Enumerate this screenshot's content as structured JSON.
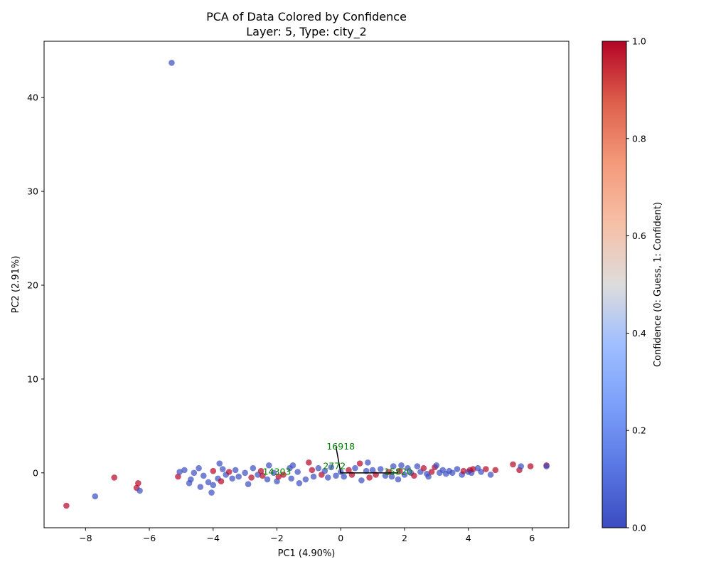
{
  "chart_data": {
    "type": "scatter",
    "title": "PCA of Data Colored by Confidence",
    "subtitle": "Layer: 5, Type: city_2",
    "xlabel": "PC1 (4.90%)",
    "ylabel": "PC2 (2.91%)",
    "xlim": [
      -9.3,
      7.15
    ],
    "ylim": [
      -5.85,
      46.0
    ],
    "xticks": [
      -8,
      -6,
      -4,
      -2,
      0,
      2,
      4,
      6
    ],
    "yticks": [
      0,
      10,
      20,
      30,
      40
    ],
    "grid": false,
    "colorbar": {
      "label": "Confidence (0: Guess, 1: Confident)",
      "range": [
        0.0,
        1.0
      ],
      "ticks": [
        0.0,
        0.2,
        0.4,
        0.6,
        0.8,
        1.0
      ],
      "colormap": "coolwarm",
      "low_color": "#3b4cc0",
      "high_color": "#b40426"
    },
    "points": [
      {
        "x": -5.3,
        "y": 43.7,
        "c": 0
      },
      {
        "x": -8.6,
        "y": -3.5,
        "c": 1
      },
      {
        "x": -7.7,
        "y": -2.5,
        "c": 0
      },
      {
        "x": -7.1,
        "y": -0.5,
        "c": 1
      },
      {
        "x": -6.4,
        "y": -1.6,
        "c": 1
      },
      {
        "x": -6.35,
        "y": -1.1,
        "c": 1
      },
      {
        "x": -6.3,
        "y": -1.9,
        "c": 0
      },
      {
        "x": -5.1,
        "y": -0.4,
        "c": 1
      },
      {
        "x": -5.05,
        "y": 0.1,
        "c": 0
      },
      {
        "x": -4.9,
        "y": 0.3,
        "c": 0
      },
      {
        "x": -4.75,
        "y": -1.1,
        "c": 0
      },
      {
        "x": -4.7,
        "y": -0.7,
        "c": 0
      },
      {
        "x": -4.6,
        "y": 0.0,
        "c": 0
      },
      {
        "x": -4.45,
        "y": 0.5,
        "c": 0
      },
      {
        "x": -4.4,
        "y": -1.5,
        "c": 0
      },
      {
        "x": -4.3,
        "y": -0.3,
        "c": 0
      },
      {
        "x": -4.15,
        "y": -1.0,
        "c": 0
      },
      {
        "x": -4.05,
        "y": -2.1,
        "c": 0
      },
      {
        "x": -4.0,
        "y": -1.3,
        "c": 0
      },
      {
        "x": -4.0,
        "y": 0.2,
        "c": 1
      },
      {
        "x": -3.85,
        "y": -0.6,
        "c": 0
      },
      {
        "x": -3.75,
        "y": -0.9,
        "c": 1
      },
      {
        "x": -3.8,
        "y": 1.0,
        "c": 0
      },
      {
        "x": -3.7,
        "y": 0.4,
        "c": 0
      },
      {
        "x": -3.6,
        "y": -0.2,
        "c": 0
      },
      {
        "x": -3.5,
        "y": 0.1,
        "c": 1
      },
      {
        "x": -3.4,
        "y": -0.6,
        "c": 0
      },
      {
        "x": -3.3,
        "y": 0.3,
        "c": 0
      },
      {
        "x": -3.2,
        "y": -0.4,
        "c": 0
      },
      {
        "x": -3.0,
        "y": 0.0,
        "c": 0
      },
      {
        "x": -2.9,
        "y": -1.2,
        "c": 0
      },
      {
        "x": -2.8,
        "y": -0.5,
        "c": 1
      },
      {
        "x": -2.75,
        "y": 0.5,
        "c": 0
      },
      {
        "x": -2.6,
        "y": -0.2,
        "c": 0
      },
      {
        "x": -2.5,
        "y": 0.2,
        "c": 1
      },
      {
        "x": -2.45,
        "y": -0.3,
        "c": 1
      },
      {
        "x": -2.3,
        "y": -0.7,
        "c": 0
      },
      {
        "x": -2.25,
        "y": 0.8,
        "c": 0
      },
      {
        "x": -2.1,
        "y": 0.0,
        "c": 0
      },
      {
        "x": -2.0,
        "y": -0.9,
        "c": 0
      },
      {
        "x": -1.95,
        "y": -0.4,
        "c": 1
      },
      {
        "x": -1.8,
        "y": -0.2,
        "c": 1
      },
      {
        "x": -1.6,
        "y": 0.5,
        "c": 0
      },
      {
        "x": -1.55,
        "y": -0.6,
        "c": 0
      },
      {
        "x": -1.5,
        "y": 0.8,
        "c": 0
      },
      {
        "x": -1.35,
        "y": 0.1,
        "c": 0
      },
      {
        "x": -1.3,
        "y": -1.1,
        "c": 0
      },
      {
        "x": -1.1,
        "y": -0.7,
        "c": 0
      },
      {
        "x": -1.0,
        "y": 1.1,
        "c": 1
      },
      {
        "x": -0.9,
        "y": 0.3,
        "c": 1
      },
      {
        "x": -0.85,
        "y": -0.4,
        "c": 0
      },
      {
        "x": -0.7,
        "y": 0.5,
        "c": 0
      },
      {
        "x": -0.6,
        "y": -0.2,
        "c": 1
      },
      {
        "x": -0.5,
        "y": 0.2,
        "c": 0
      },
      {
        "x": -0.4,
        "y": -0.5,
        "c": 0
      },
      {
        "x": -0.3,
        "y": 0.6,
        "c": 0
      },
      {
        "x": -0.15,
        "y": -0.3,
        "c": 0
      },
      {
        "x": 0.0,
        "y": 0.1,
        "c": 0
      },
      {
        "x": 0.1,
        "y": -0.4,
        "c": 0
      },
      {
        "x": 0.25,
        "y": 0.3,
        "c": 1
      },
      {
        "x": 0.35,
        "y": -0.2,
        "c": 1
      },
      {
        "x": 0.45,
        "y": 0.5,
        "c": 0
      },
      {
        "x": 0.6,
        "y": 1.0,
        "c": 1
      },
      {
        "x": 0.65,
        "y": -0.8,
        "c": 0
      },
      {
        "x": 0.8,
        "y": 0.2,
        "c": 0
      },
      {
        "x": 0.85,
        "y": 1.1,
        "c": 0
      },
      {
        "x": 0.9,
        "y": -0.5,
        "c": 1
      },
      {
        "x": 1.0,
        "y": 0.3,
        "c": 0
      },
      {
        "x": 1.1,
        "y": -0.2,
        "c": 1
      },
      {
        "x": 1.25,
        "y": 0.4,
        "c": 0
      },
      {
        "x": 1.4,
        "y": -0.3,
        "c": 0
      },
      {
        "x": 1.5,
        "y": 0.1,
        "c": 1
      },
      {
        "x": 1.6,
        "y": -0.4,
        "c": 0
      },
      {
        "x": 1.65,
        "y": 0.7,
        "c": 0
      },
      {
        "x": 1.8,
        "y": -0.7,
        "c": 0
      },
      {
        "x": 1.85,
        "y": 0.2,
        "c": 1
      },
      {
        "x": 1.9,
        "y": 0.8,
        "c": 0
      },
      {
        "x": 2.0,
        "y": -0.2,
        "c": 0
      },
      {
        "x": 2.1,
        "y": 0.5,
        "c": 0
      },
      {
        "x": 2.2,
        "y": 0.0,
        "c": 0
      },
      {
        "x": 2.3,
        "y": -0.3,
        "c": 1
      },
      {
        "x": 2.4,
        "y": 0.7,
        "c": 0
      },
      {
        "x": 2.5,
        "y": 0.1,
        "c": 0
      },
      {
        "x": 2.6,
        "y": 0.5,
        "c": 1
      },
      {
        "x": 2.7,
        "y": -0.1,
        "c": 0
      },
      {
        "x": 2.75,
        "y": -0.4,
        "c": 0
      },
      {
        "x": 2.85,
        "y": 0.1,
        "c": 1
      },
      {
        "x": 2.95,
        "y": 0.6,
        "c": 1
      },
      {
        "x": 3.0,
        "y": 0.8,
        "c": 0
      },
      {
        "x": 3.1,
        "y": 0.0,
        "c": 0
      },
      {
        "x": 3.2,
        "y": 0.3,
        "c": 0
      },
      {
        "x": 3.3,
        "y": -0.1,
        "c": 0
      },
      {
        "x": 3.4,
        "y": 0.2,
        "c": 0
      },
      {
        "x": 3.5,
        "y": 0.0,
        "c": 0
      },
      {
        "x": 3.65,
        "y": 0.4,
        "c": 0
      },
      {
        "x": 3.8,
        "y": -0.2,
        "c": 0
      },
      {
        "x": 3.85,
        "y": 0.2,
        "c": 1
      },
      {
        "x": 4.0,
        "y": 0.1,
        "c": 0
      },
      {
        "x": 4.05,
        "y": 0.3,
        "c": 1
      },
      {
        "x": 4.1,
        "y": 0.0,
        "c": 0
      },
      {
        "x": 4.15,
        "y": 0.4,
        "c": 1
      },
      {
        "x": 4.3,
        "y": 0.5,
        "c": 0
      },
      {
        "x": 4.4,
        "y": 0.1,
        "c": 0
      },
      {
        "x": 4.55,
        "y": 0.4,
        "c": 1
      },
      {
        "x": 4.7,
        "y": -0.2,
        "c": 0
      },
      {
        "x": 4.85,
        "y": 0.3,
        "c": 1
      },
      {
        "x": 5.4,
        "y": 0.9,
        "c": 1
      },
      {
        "x": 5.6,
        "y": 0.3,
        "c": 1
      },
      {
        "x": 5.65,
        "y": 0.7,
        "c": 0
      },
      {
        "x": 5.95,
        "y": 0.7,
        "c": 1
      },
      {
        "x": 6.45,
        "y": 0.8,
        "c": 1
      },
      {
        "x": 6.45,
        "y": 0.7,
        "c": 0
      }
    ],
    "annotations": [
      {
        "text": "16918",
        "x": 0.0,
        "y": 2.8
      },
      {
        "text": "2772",
        "x": -0.2,
        "y": 0.7
      },
      {
        "text": "14303",
        "x": -2.0,
        "y": 0.1
      },
      {
        "text": "15820",
        "x": 1.8,
        "y": 0.1
      }
    ],
    "annotation_color": "#008000",
    "lines": [
      {
        "x": [
          -0.15,
          0.0,
          1.8
        ],
        "y": [
          2.8,
          0.0,
          0.0
        ]
      }
    ]
  }
}
